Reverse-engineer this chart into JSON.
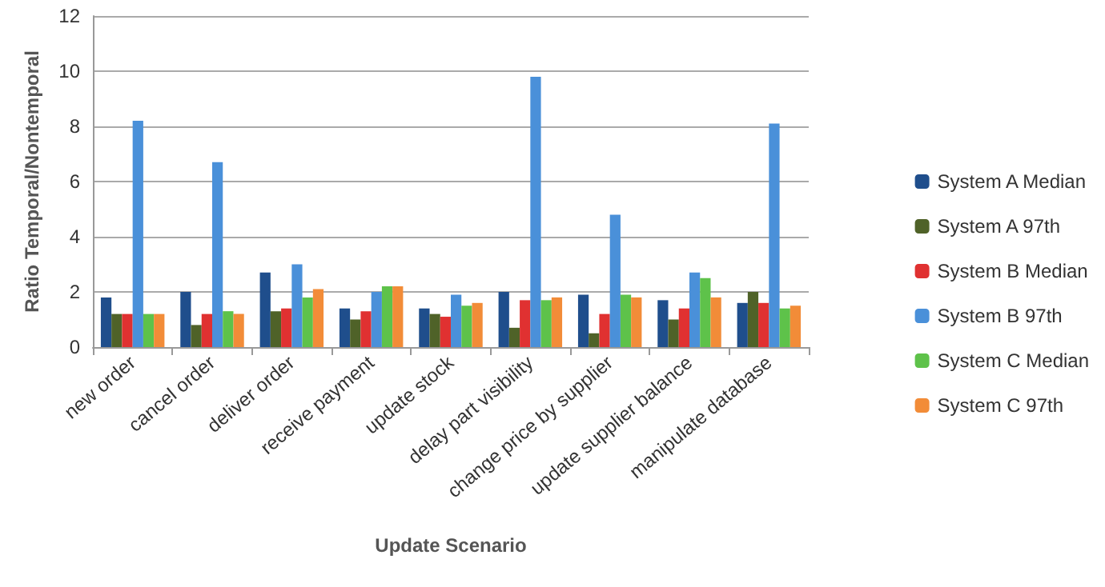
{
  "chart_data": {
    "type": "bar",
    "xlabel": "Update Scenario",
    "ylabel": "Ratio Temporal/Nontemporal",
    "categories": [
      "new order",
      "cancel order",
      "deliver order",
      "receive payment",
      "update stock",
      "delay part visibility",
      "change price by supplier",
      "update supplier balance",
      "manipulate database"
    ],
    "series": [
      {
        "name": "System A Median",
        "color": "#1f4e8c",
        "values": [
          1.8,
          2.0,
          2.7,
          1.4,
          1.4,
          2.0,
          1.9,
          1.7,
          1.6
        ]
      },
      {
        "name": "System A 97th",
        "color": "#4f6228",
        "values": [
          1.2,
          0.8,
          1.3,
          1.0,
          1.2,
          0.7,
          0.5,
          1.0,
          2.0
        ]
      },
      {
        "name": "System B Median",
        "color": "#e03131",
        "values": [
          1.2,
          1.2,
          1.4,
          1.3,
          1.1,
          1.7,
          1.2,
          1.4,
          1.6
        ]
      },
      {
        "name": "System B 97th",
        "color": "#4a90d9",
        "values": [
          8.2,
          6.7,
          3.0,
          2.0,
          1.9,
          9.8,
          4.8,
          2.7,
          8.1
        ]
      },
      {
        "name": "System C Median",
        "color": "#5ec24a",
        "values": [
          1.2,
          1.3,
          1.8,
          2.2,
          1.5,
          1.7,
          1.9,
          2.5,
          1.4
        ]
      },
      {
        "name": "System C 97th",
        "color": "#f28c38",
        "values": [
          1.2,
          1.2,
          2.1,
          2.2,
          1.6,
          1.8,
          1.8,
          1.8,
          1.5
        ]
      }
    ],
    "ylim": [
      0,
      12
    ],
    "yticks": [
      0,
      2,
      4,
      6,
      8,
      10,
      12
    ],
    "grid": "y",
    "legend": "right"
  }
}
